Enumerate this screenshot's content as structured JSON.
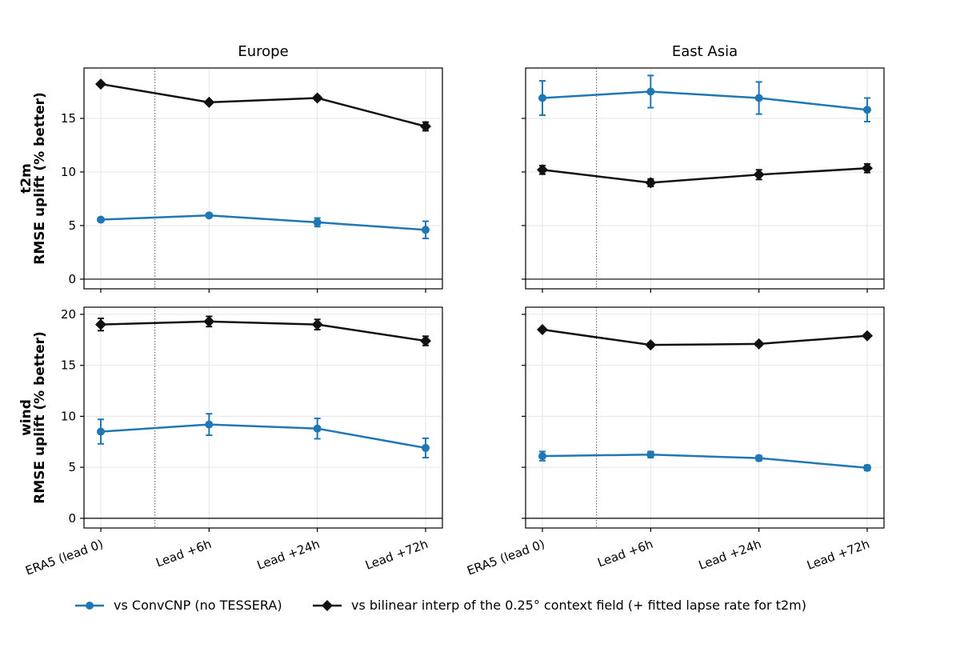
{
  "chart_data": [
    {
      "type": "line",
      "title": "Europe",
      "row_label": "t2m",
      "ylabel": "RMSE uplift (% better)",
      "categories": [
        "ERA5 (lead 0)",
        "Lead +6h",
        "Lead +24h",
        "Lead +72h"
      ],
      "ylim": [
        -0.9,
        19.7
      ],
      "yticks": [
        0,
        5,
        10,
        15
      ],
      "grid": true,
      "series": [
        {
          "name": "vs ConvCNP (no TESSERA)",
          "values": [
            5.55,
            5.95,
            5.3,
            4.6
          ],
          "errors": [
            0.1,
            0.15,
            0.4,
            0.8
          ],
          "color": "#1f77b4",
          "marker": "circle"
        },
        {
          "name": "vs bilinear interp of the 0.25° context field (+ fitted lapse rate for t2m)",
          "values": [
            18.2,
            16.5,
            16.9,
            14.25
          ],
          "errors": [
            0.1,
            0.15,
            0.2,
            0.4
          ],
          "color": "#111111",
          "marker": "diamond"
        }
      ]
    },
    {
      "type": "line",
      "title": "East Asia",
      "row_label": "",
      "ylabel": "",
      "categories": [
        "ERA5 (lead 0)",
        "Lead +6h",
        "Lead +24h",
        "Lead +72h"
      ],
      "ylim": [
        -0.9,
        19.7
      ],
      "yticks": [
        0,
        5,
        10,
        15
      ],
      "grid": true,
      "series": [
        {
          "name": "vs ConvCNP (no TESSERA)",
          "values": [
            16.9,
            17.5,
            16.9,
            15.8
          ],
          "errors": [
            1.6,
            1.5,
            1.5,
            1.1
          ],
          "color": "#1f77b4",
          "marker": "circle"
        },
        {
          "name": "vs bilinear interp of the 0.25° context field (+ fitted lapse rate for t2m)",
          "values": [
            10.2,
            9.0,
            9.75,
            10.35
          ],
          "errors": [
            0.4,
            0.35,
            0.45,
            0.4
          ],
          "color": "#111111",
          "marker": "diamond"
        }
      ]
    },
    {
      "type": "line",
      "title": "",
      "row_label": "wind",
      "ylabel": "RMSE uplift (% better)",
      "categories": [
        "ERA5 (lead 0)",
        "Lead +6h",
        "Lead +24h",
        "Lead +72h"
      ],
      "ylim": [
        -0.95,
        20.7
      ],
      "yticks": [
        0,
        5,
        10,
        15,
        20
      ],
      "grid": true,
      "series": [
        {
          "name": "vs ConvCNP (no TESSERA)",
          "values": [
            8.5,
            9.2,
            8.8,
            6.9
          ],
          "errors": [
            1.2,
            1.05,
            1.0,
            0.95
          ],
          "color": "#1f77b4",
          "marker": "circle"
        },
        {
          "name": "vs bilinear interp of the 0.25° context field (+ fitted lapse rate for t2m)",
          "values": [
            19.0,
            19.3,
            19.0,
            17.4
          ],
          "errors": [
            0.6,
            0.5,
            0.5,
            0.45
          ],
          "color": "#111111",
          "marker": "diamond"
        }
      ]
    },
    {
      "type": "line",
      "title": "",
      "row_label": "",
      "ylabel": "",
      "categories": [
        "ERA5 (lead 0)",
        "Lead +6h",
        "Lead +24h",
        "Lead +72h"
      ],
      "ylim": [
        -0.95,
        20.7
      ],
      "yticks": [
        0,
        5,
        10,
        15,
        20
      ],
      "grid": true,
      "series": [
        {
          "name": "vs ConvCNP (no TESSERA)",
          "values": [
            6.1,
            6.25,
            5.9,
            4.95
          ],
          "errors": [
            0.45,
            0.3,
            0.25,
            0.25
          ],
          "color": "#1f77b4",
          "marker": "circle"
        },
        {
          "name": "vs bilinear interp of the 0.25° context field (+ fitted lapse rate for t2m)",
          "values": [
            18.5,
            17.0,
            17.1,
            17.9
          ],
          "errors": [
            0.1,
            0.2,
            0.2,
            0.15
          ],
          "color": "#111111",
          "marker": "diamond"
        }
      ]
    }
  ],
  "legend": {
    "placement": "bottom",
    "items": [
      {
        "label": "vs ConvCNP (no TESSERA)",
        "color": "#1f77b4",
        "marker": "circle"
      },
      {
        "label": "vs bilinear interp of the 0.25° context field (+ fitted lapse rate for t2m)",
        "color": "#111111",
        "marker": "diamond"
      }
    ]
  }
}
